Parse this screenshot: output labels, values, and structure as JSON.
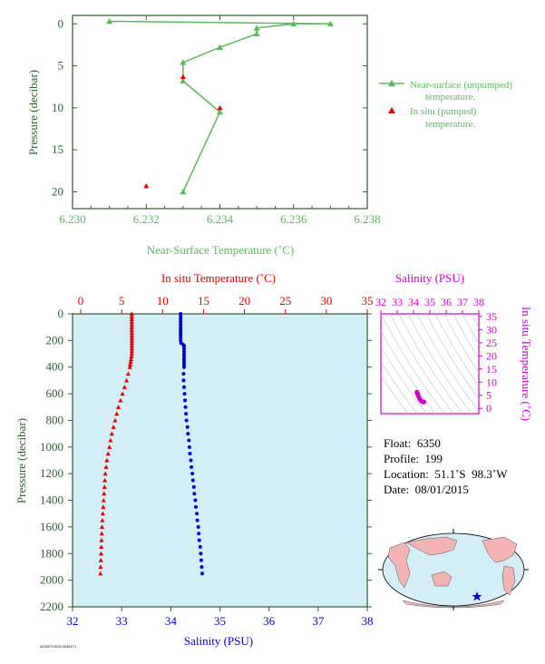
{
  "colors": {
    "green": "#5cb85c",
    "axis_green": "#2e5e2e",
    "red": "#e00000",
    "blue": "#0000c8",
    "magenta": "#cc00cc",
    "panel_bg": "#d4eef8"
  },
  "chart_data": [
    {
      "type": "line",
      "xlabel": "Near-Surface Temperature (˚C)",
      "ylabel": "Pressure (decibar)",
      "xlim": [
        6.23,
        6.238
      ],
      "ylim": [
        22,
        -1
      ],
      "xticks": [
        "6.230",
        "6.232",
        "6.234",
        "6.236",
        "6.238"
      ],
      "yticks": [
        "0",
        "5",
        "10",
        "15",
        "20"
      ],
      "series": [
        {
          "name": "Near-surface (unpumped) temperature.",
          "marker": "triangle",
          "color": "green",
          "points": [
            [
              6.231,
              -0.3
            ],
            [
              6.237,
              0
            ],
            [
              6.236,
              0
            ],
            [
              6.235,
              0.5
            ],
            [
              6.235,
              1.2
            ],
            [
              6.234,
              2.8
            ],
            [
              6.233,
              4.6
            ],
            [
              6.233,
              6.8
            ],
            [
              6.234,
              10.5
            ],
            [
              6.233,
              20
            ]
          ]
        },
        {
          "name": "In situ (pumped) temperature.",
          "marker": "triangle",
          "color": "red",
          "points": [
            [
              6.233,
              6.3
            ],
            [
              6.234,
              10.0
            ],
            [
              6.232,
              19.3
            ]
          ]
        }
      ]
    },
    {
      "type": "scatter",
      "top_xlabel": "In situ Temperature (˚C)",
      "bottom_xlabel": "Salinity (PSU)",
      "ylabel": "Pressure (decibar)",
      "temp_xlim": [
        -1,
        35
      ],
      "sal_xlim": [
        32,
        38
      ],
      "ylim": [
        2200,
        0
      ],
      "temp_ticks": [
        "0",
        "5",
        "10",
        "15",
        "20",
        "25",
        "30",
        "35"
      ],
      "sal_ticks": [
        "32",
        "33",
        "34",
        "35",
        "36",
        "37",
        "38"
      ],
      "yticks": [
        "0",
        "200",
        "400",
        "600",
        "800",
        "1000",
        "1200",
        "1400",
        "1600",
        "1800",
        "2000",
        "2200"
      ],
      "temperature_profile": {
        "name": "In situ Temperature",
        "color": "red",
        "marker": "triangle",
        "p": [
          0,
          20,
          40,
          60,
          80,
          100,
          120,
          140,
          160,
          180,
          200,
          220,
          240,
          260,
          280,
          300,
          320,
          340,
          360,
          380,
          400,
          450,
          500,
          550,
          600,
          650,
          700,
          750,
          800,
          850,
          900,
          950,
          1000,
          1050,
          1100,
          1150,
          1200,
          1250,
          1300,
          1350,
          1400,
          1450,
          1500,
          1550,
          1600,
          1650,
          1700,
          1750,
          1800,
          1850,
          1900,
          1950
        ],
        "t": [
          6.23,
          6.23,
          6.23,
          6.23,
          6.23,
          6.23,
          6.23,
          6.24,
          6.24,
          6.24,
          6.24,
          6.24,
          6.24,
          6.24,
          6.24,
          6.24,
          6.2,
          6.15,
          6.1,
          6.05,
          6.0,
          5.8,
          5.6,
          5.35,
          5.1,
          4.85,
          4.6,
          4.4,
          4.2,
          4.0,
          3.8,
          3.65,
          3.5,
          3.35,
          3.2,
          3.1,
          3.0,
          2.95,
          2.9,
          2.85,
          2.8,
          2.75,
          2.7,
          2.65,
          2.6,
          2.57,
          2.54,
          2.51,
          2.48,
          2.45,
          2.42,
          2.4
        ]
      },
      "salinity_profile": {
        "name": "Salinity",
        "color": "blue",
        "marker": "dot",
        "p": [
          0,
          20,
          40,
          60,
          80,
          100,
          120,
          140,
          160,
          180,
          200,
          220,
          230,
          240,
          260,
          280,
          300,
          320,
          340,
          360,
          380,
          400,
          450,
          500,
          550,
          600,
          650,
          700,
          750,
          800,
          850,
          900,
          950,
          1000,
          1050,
          1100,
          1150,
          1200,
          1250,
          1300,
          1350,
          1400,
          1450,
          1500,
          1550,
          1600,
          1650,
          1700,
          1750,
          1800,
          1850,
          1900,
          1950
        ],
        "s": [
          34.2,
          34.2,
          34.2,
          34.2,
          34.2,
          34.2,
          34.2,
          34.2,
          34.2,
          34.2,
          34.2,
          34.21,
          34.25,
          34.27,
          34.27,
          34.27,
          34.27,
          34.27,
          34.27,
          34.27,
          34.27,
          34.27,
          34.26,
          34.26,
          34.27,
          34.28,
          34.29,
          34.3,
          34.31,
          34.32,
          34.34,
          34.35,
          34.37,
          34.38,
          34.39,
          34.41,
          34.42,
          34.44,
          34.45,
          34.47,
          34.48,
          34.5,
          34.51,
          34.53,
          34.54,
          34.56,
          34.57,
          34.58,
          34.6,
          34.61,
          34.62,
          34.63,
          34.64
        ]
      }
    },
    {
      "type": "scatter",
      "xlabel": "Salinity (PSU)",
      "ylabel": "In situ Temperature (˚C)",
      "xlim": [
        32,
        38
      ],
      "ylim": [
        -2,
        36
      ],
      "xticks": [
        "32",
        "33",
        "34",
        "35",
        "36",
        "37",
        "38"
      ],
      "yticks": [
        "0",
        "5",
        "10",
        "15",
        "20",
        "25",
        "30",
        "35"
      ],
      "color": "magenta",
      "points": [
        [
          34.2,
          6.2
        ],
        [
          34.22,
          6.0
        ],
        [
          34.25,
          5.5
        ],
        [
          34.27,
          5.0
        ],
        [
          34.3,
          4.6
        ],
        [
          34.34,
          4.1
        ],
        [
          34.38,
          3.6
        ],
        [
          34.42,
          3.2
        ],
        [
          34.46,
          2.9
        ],
        [
          34.5,
          2.7
        ],
        [
          34.55,
          2.5
        ],
        [
          34.6,
          2.45
        ],
        [
          34.64,
          2.4
        ]
      ]
    }
  ],
  "float_info": {
    "float": "Float:  6350",
    "profile": "Profile:  199",
    "location": "Location:  51.1˚S  98.3˚W",
    "date": "Date:  08/01/2015"
  },
  "map": {
    "marker_icon": "star-icon",
    "marker_lat": -51.1,
    "marker_lon": -98.3
  },
  "footer_code": "ACNET/2015.2046171"
}
